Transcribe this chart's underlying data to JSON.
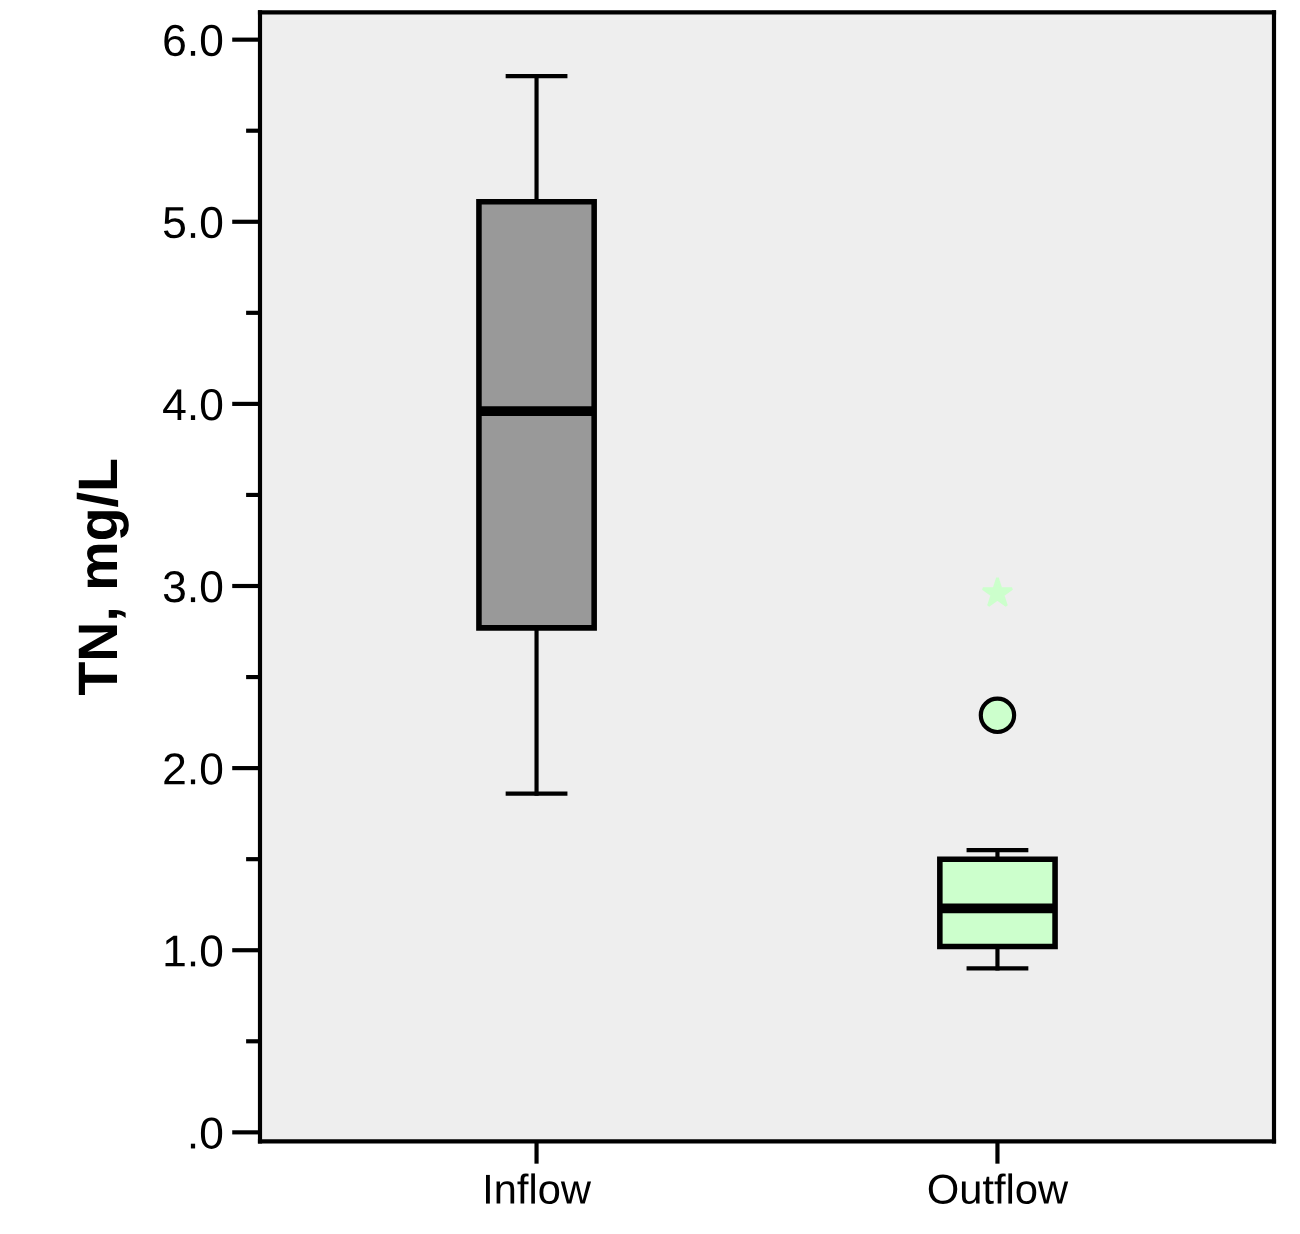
{
  "chart_data": {
    "type": "box",
    "ylabel": "TN, mg/L",
    "categories": [
      "Inflow",
      "Outflow"
    ],
    "colors": [
      "#999999",
      "#ccffcc"
    ],
    "boxes": [
      {
        "low": 1.86,
        "q1": 2.77,
        "median": 3.96,
        "q3": 5.11,
        "high": 5.8
      },
      {
        "low": 0.9,
        "q1": 1.02,
        "median": 1.23,
        "q3": 1.5,
        "high": 1.55,
        "outliers": [
          2.29,
          2.96
        ]
      }
    ],
    "ylim": [
      -0.05,
      6.15
    ],
    "yticks": [
      {
        "value": 0,
        "label": ".0"
      },
      {
        "value": 0.5,
        "label": null
      },
      {
        "value": 1,
        "label": "1.0"
      },
      {
        "value": 1.5,
        "label": null
      },
      {
        "value": 2,
        "label": "2.0"
      },
      {
        "value": 2.5,
        "label": null
      },
      {
        "value": 3,
        "label": "3.0"
      },
      {
        "value": 3.5,
        "label": null
      },
      {
        "value": 4,
        "label": "4.0"
      },
      {
        "value": 4.5,
        "label": null
      },
      {
        "value": 5,
        "label": "5.0"
      },
      {
        "value": 5.5,
        "label": null
      },
      {
        "value": 6,
        "label": "6.0"
      }
    ],
    "grid": false,
    "legend": false
  }
}
